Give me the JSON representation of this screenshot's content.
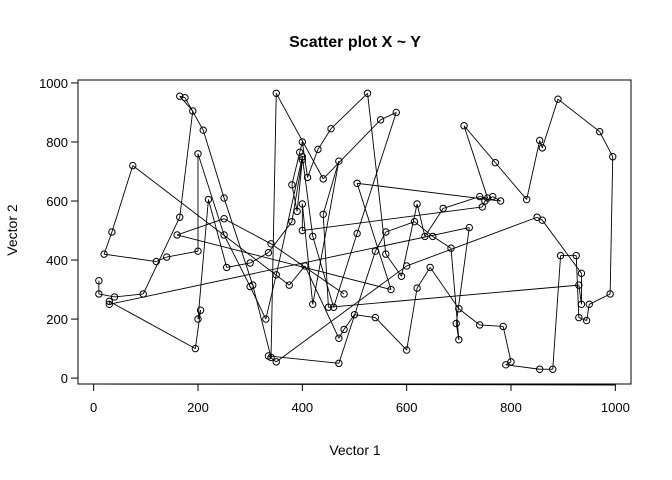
{
  "chart_data": {
    "type": "scatter",
    "title": "Scatter plot X ~ Y",
    "xlabel": "Vector 1",
    "ylabel": "Vector 2",
    "xlim": [
      -30,
      1030
    ],
    "ylim": [
      -20,
      1010
    ],
    "xticks": [
      0,
      200,
      400,
      600,
      800,
      1000
    ],
    "yticks": [
      0,
      200,
      400,
      600,
      800,
      1000
    ],
    "grid": false,
    "legend": "none",
    "connect_points": true,
    "marker": "open-circle",
    "colors": {
      "points": "#000000",
      "lines": "#000000",
      "frame": "#000000",
      "background": "#ffffff"
    },
    "points": [
      [
        10,
        330
      ],
      [
        10,
        285
      ],
      [
        40,
        275
      ],
      [
        95,
        285
      ],
      [
        165,
        545
      ],
      [
        190,
        905
      ],
      [
        165,
        955
      ],
      [
        175,
        950
      ],
      [
        210,
        840
      ],
      [
        250,
        610
      ],
      [
        305,
        315
      ],
      [
        340,
        70
      ],
      [
        350,
        965
      ],
      [
        440,
        675
      ],
      [
        550,
        875
      ],
      [
        580,
        900
      ],
      [
        505,
        490
      ],
      [
        460,
        240
      ],
      [
        420,
        480
      ],
      [
        400,
        750
      ],
      [
        350,
        350
      ],
      [
        330,
        200
      ],
      [
        300,
        310
      ],
      [
        250,
        485
      ],
      [
        200,
        760
      ],
      [
        200,
        430
      ],
      [
        140,
        410
      ],
      [
        120,
        395
      ],
      [
        20,
        420
      ],
      [
        35,
        495
      ],
      [
        75,
        720
      ],
      [
        375,
        315
      ],
      [
        405,
        380
      ],
      [
        470,
        135
      ],
      [
        480,
        165
      ],
      [
        500,
        215
      ],
      [
        540,
        205
      ],
      [
        600,
        95
      ],
      [
        620,
        305
      ],
      [
        645,
        375
      ],
      [
        700,
        235
      ],
      [
        740,
        180
      ],
      [
        785,
        175
      ],
      [
        800,
        55
      ],
      [
        790,
        45
      ],
      [
        855,
        30
      ],
      [
        880,
        30
      ],
      [
        895,
        415
      ],
      [
        925,
        415
      ],
      [
        930,
        205
      ],
      [
        945,
        195
      ],
      [
        950,
        250
      ],
      [
        990,
        285
      ],
      [
        995,
        750
      ],
      [
        970,
        835
      ],
      [
        890,
        945
      ],
      [
        860,
        780
      ],
      [
        855,
        805
      ],
      [
        830,
        605
      ],
      [
        770,
        730
      ],
      [
        710,
        855
      ],
      [
        755,
        610
      ],
      [
        740,
        615
      ],
      [
        670,
        575
      ],
      [
        635,
        480
      ],
      [
        620,
        590
      ],
      [
        590,
        345
      ],
      [
        560,
        420
      ],
      [
        525,
        965
      ],
      [
        455,
        845
      ],
      [
        430,
        775
      ],
      [
        410,
        680
      ],
      [
        400,
        800
      ],
      [
        395,
        765
      ],
      [
        380,
        655
      ],
      [
        390,
        565
      ],
      [
        400,
        740
      ],
      [
        380,
        530
      ],
      [
        335,
        425
      ],
      [
        300,
        390
      ],
      [
        255,
        375
      ],
      [
        220,
        605
      ],
      [
        200,
        200
      ],
      [
        205,
        230
      ],
      [
        195,
        100
      ],
      [
        30,
        260
      ],
      [
        30,
        250
      ],
      [
        720,
        510
      ],
      [
        695,
        185
      ],
      [
        700,
        130
      ],
      [
        685,
        440
      ],
      [
        650,
        480
      ],
      [
        615,
        530
      ],
      [
        560,
        495
      ],
      [
        540,
        430
      ],
      [
        470,
        50
      ],
      [
        335,
        75
      ],
      [
        350,
        55
      ],
      [
        600,
        380
      ],
      [
        850,
        545
      ],
      [
        860,
        535
      ],
      [
        935,
        355
      ],
      [
        935,
        250
      ],
      [
        930,
        315
      ],
      [
        450,
        240
      ],
      [
        440,
        555
      ],
      [
        470,
        735
      ],
      [
        420,
        250
      ],
      [
        400,
        590
      ],
      [
        400,
        500
      ],
      [
        745,
        580
      ],
      [
        750,
        600
      ],
      [
        765,
        615
      ],
      [
        780,
        600
      ],
      [
        505,
        660
      ],
      [
        570,
        300
      ],
      [
        160,
        485
      ],
      [
        250,
        540
      ],
      [
        340,
        455
      ],
      [
        480,
        285
      ]
    ]
  }
}
